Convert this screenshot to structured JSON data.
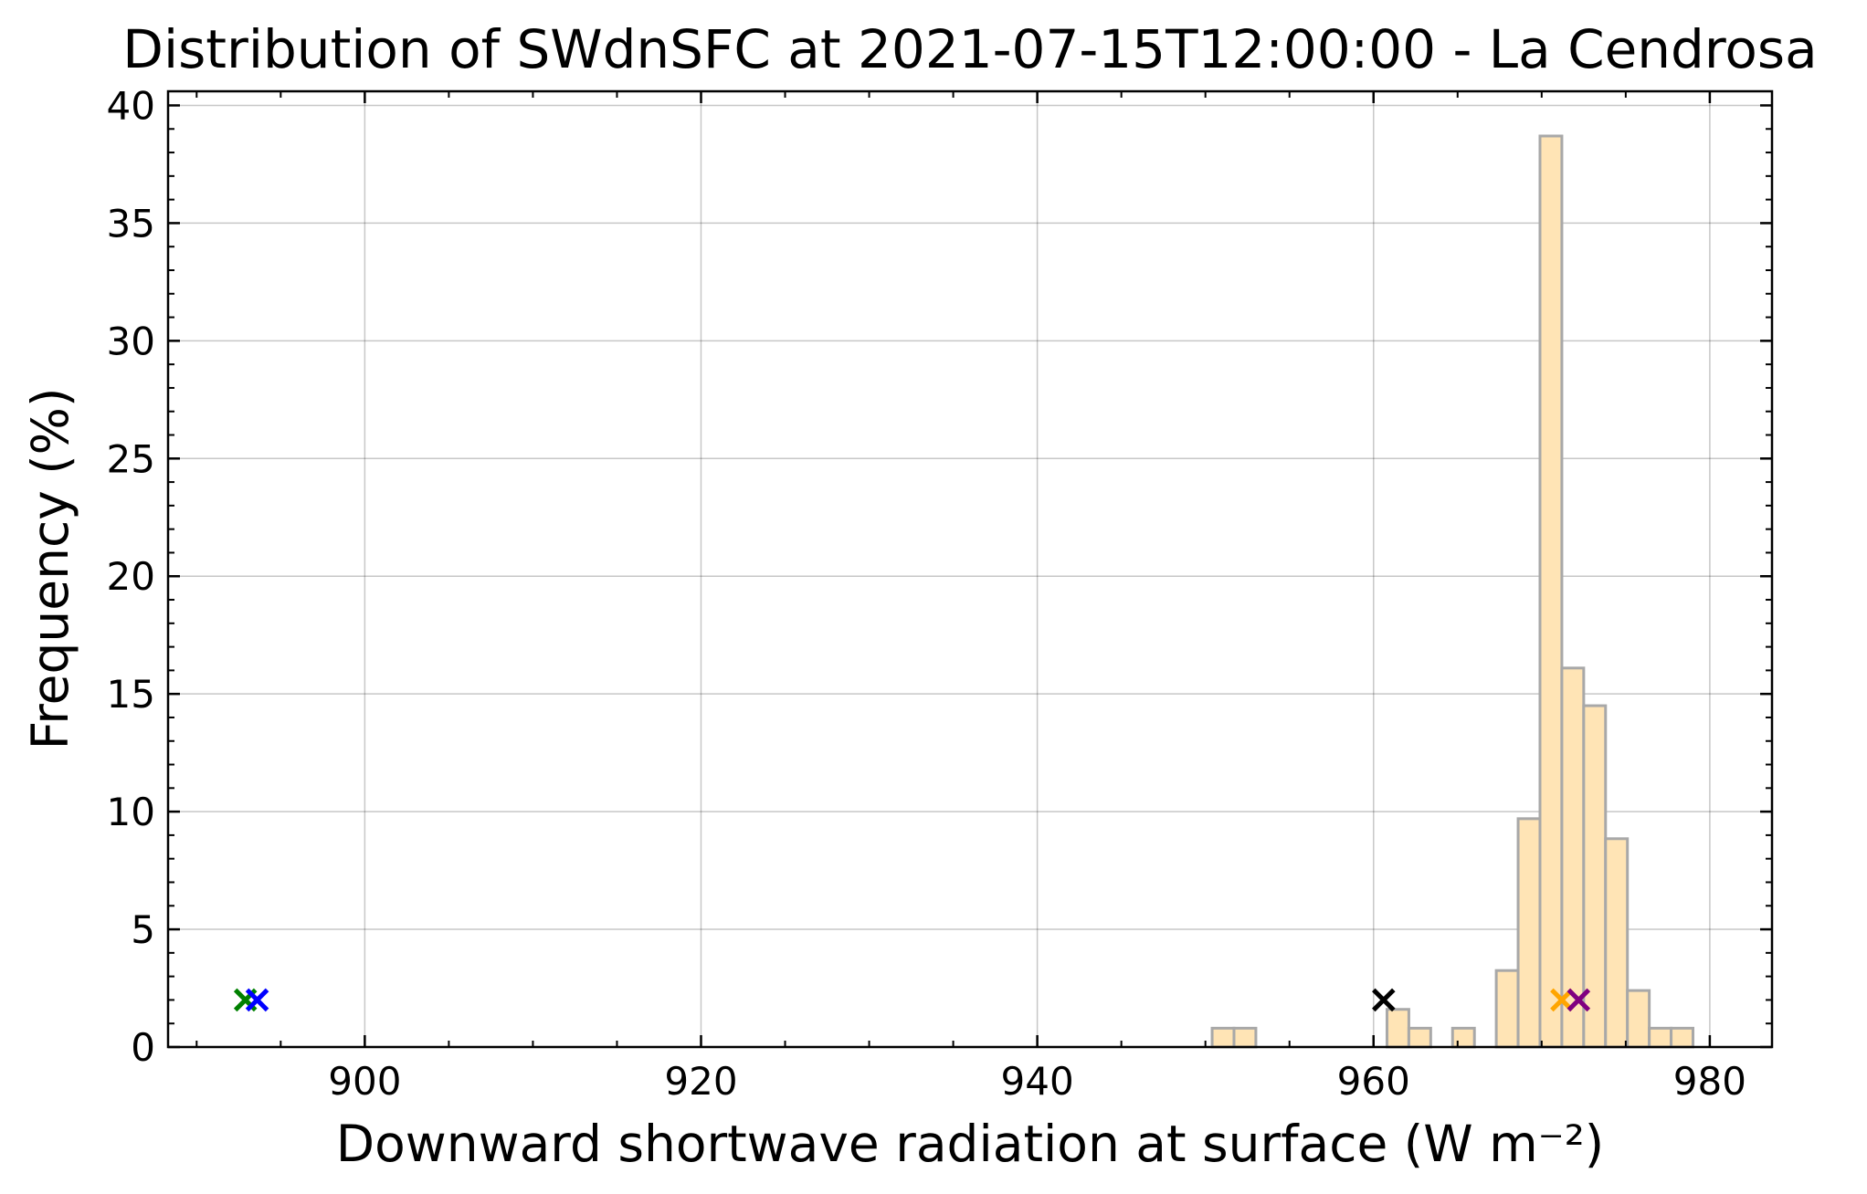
{
  "chart_data": {
    "type": "bar",
    "title": "Distribution of SWdnSFC at 2021-07-15T12:00:00 - La Cendrosa",
    "xlabel": "Downward shortwave radiation at surface (W m⁻²)",
    "ylabel": "Frequency (%)",
    "xlim": [
      888.3,
      983.7
    ],
    "ylim": [
      0,
      40.6
    ],
    "xticks": [
      900,
      920,
      940,
      960,
      980
    ],
    "yticks": [
      0,
      5,
      10,
      15,
      20,
      25,
      30,
      35,
      40
    ],
    "grid": true,
    "bin_width": 1.3,
    "bins": [
      {
        "x0": 950.4,
        "value": 0.8
      },
      {
        "x0": 951.7,
        "value": 0.8
      },
      {
        "x0": 960.8,
        "value": 1.6
      },
      {
        "x0": 962.1,
        "value": 0.8
      },
      {
        "x0": 964.7,
        "value": 0.8
      },
      {
        "x0": 967.3,
        "value": 3.25
      },
      {
        "x0": 968.6,
        "value": 9.7
      },
      {
        "x0": 969.9,
        "value": 38.7
      },
      {
        "x0": 971.2,
        "value": 16.1
      },
      {
        "x0": 972.5,
        "value": 14.5
      },
      {
        "x0": 973.8,
        "value": 8.85
      },
      {
        "x0": 975.1,
        "value": 2.4
      },
      {
        "x0": 976.4,
        "value": 0.8
      },
      {
        "x0": 977.7,
        "value": 0.8
      }
    ],
    "bar_color": "#ffe4b5",
    "bar_edge_color": "#a8a8a8",
    "markers": [
      {
        "x": 892.9,
        "y": 2,
        "color": "#008000"
      },
      {
        "x": 893.6,
        "y": 2,
        "color": "#0000ff"
      },
      {
        "x": 960.6,
        "y": 2,
        "color": "#000000"
      },
      {
        "x": 971.2,
        "y": 2,
        "color": "#ffa500"
      },
      {
        "x": 972.2,
        "y": 2,
        "color": "#800080"
      }
    ]
  }
}
